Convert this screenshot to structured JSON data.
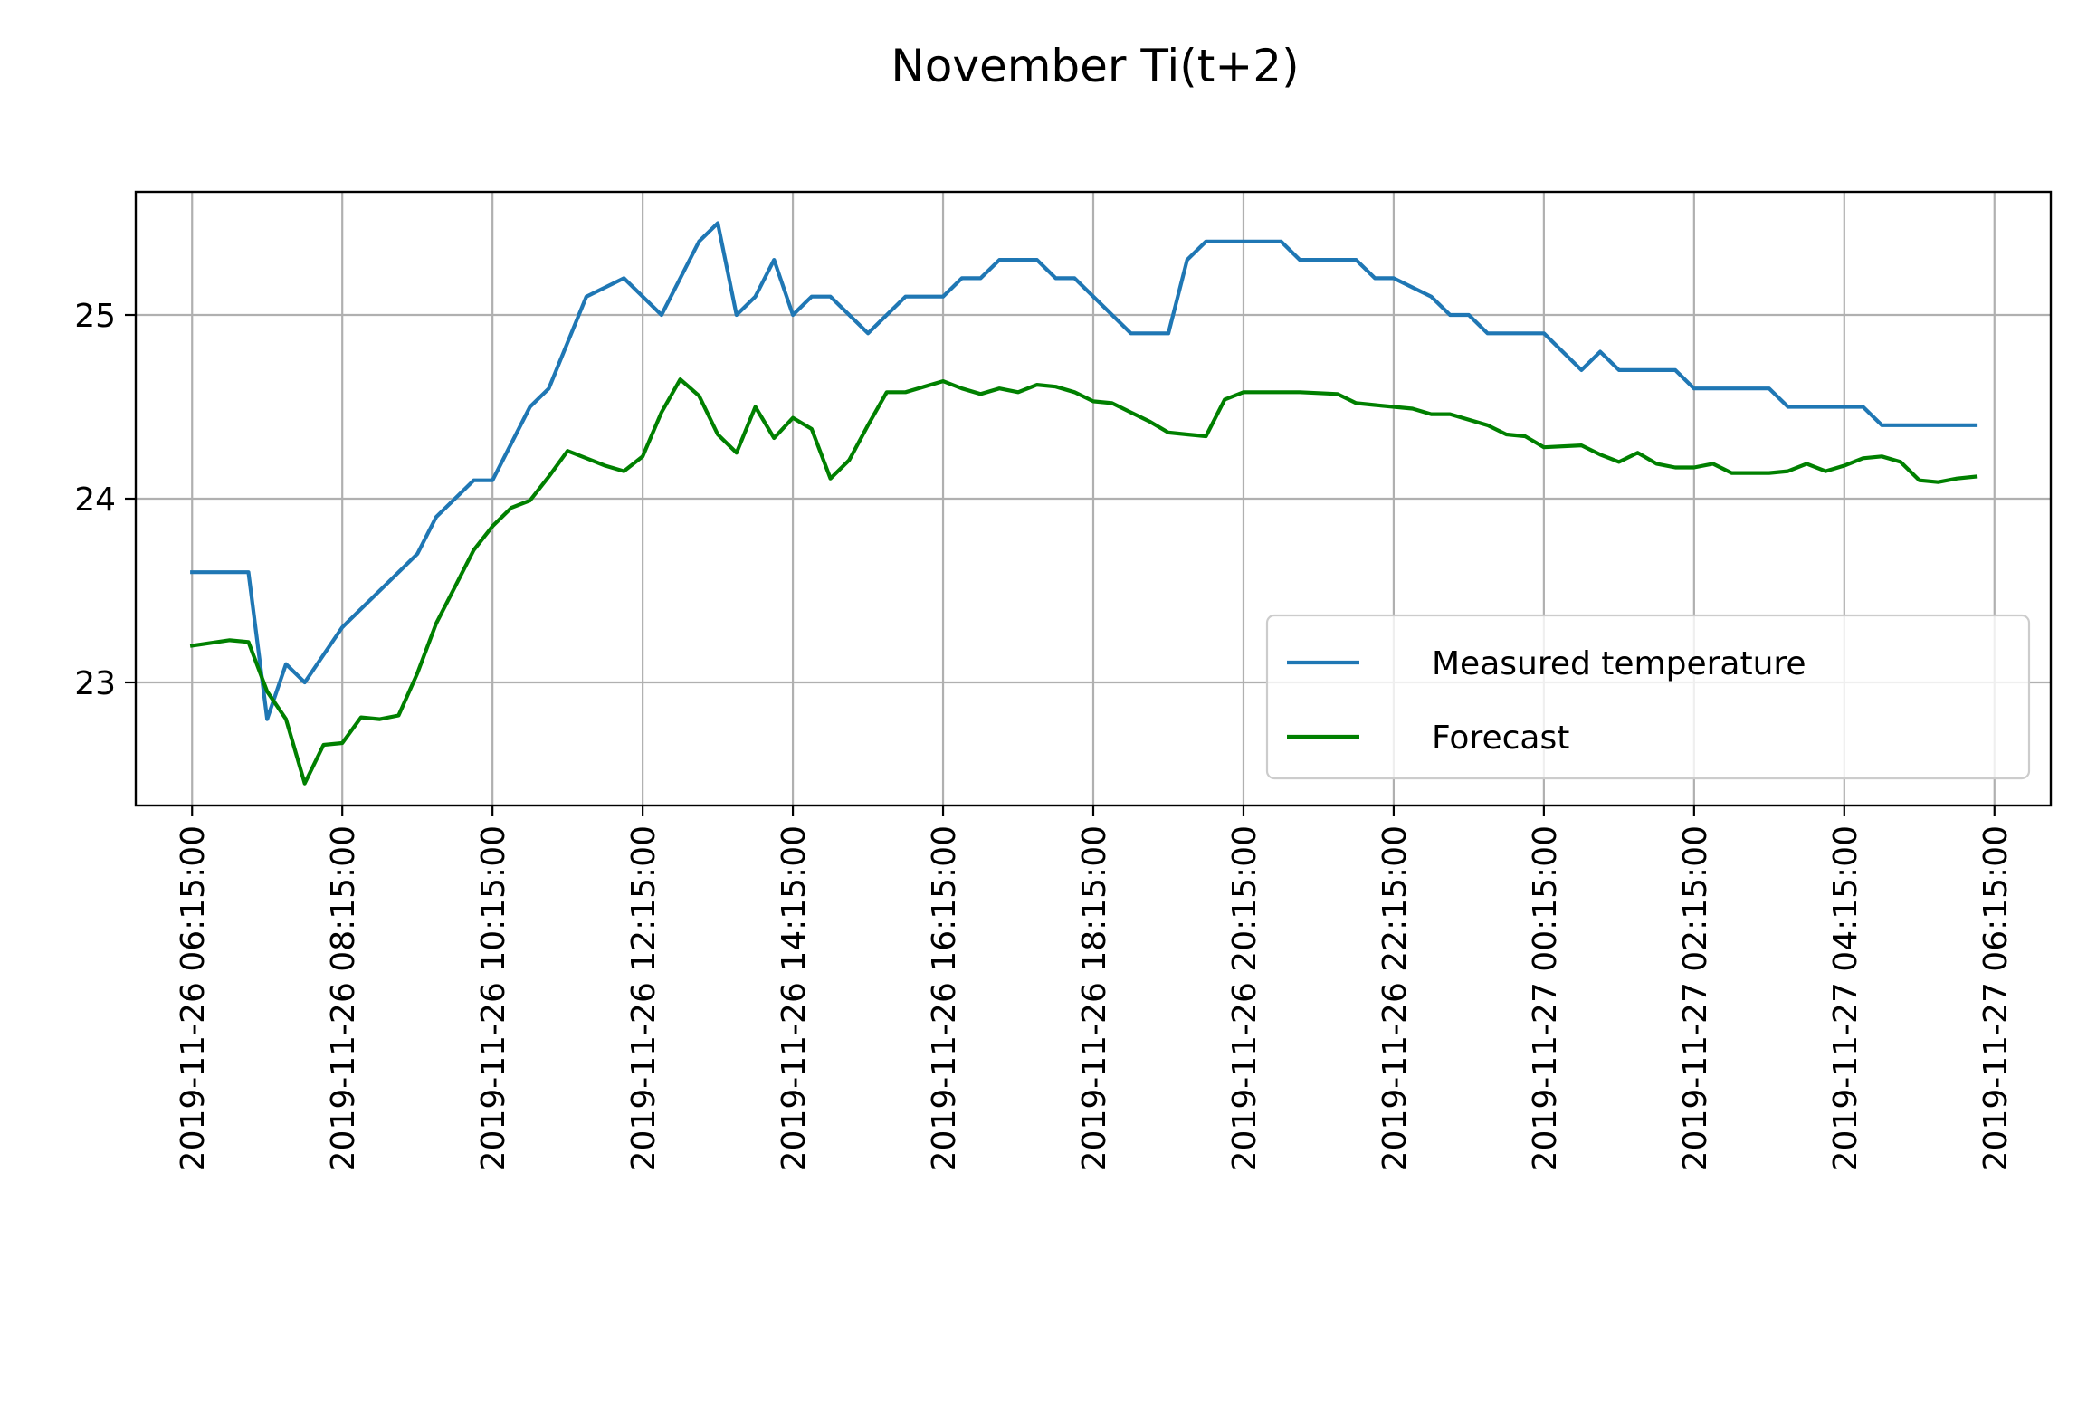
{
  "chart_data": {
    "type": "line",
    "title": "November Ti(t+2)",
    "xlabel": "",
    "ylabel": "",
    "x_start": "2019-11-26 06:15:00",
    "x_ticks": [
      "2019-11-26 06:15:00",
      "2019-11-26 08:15:00",
      "2019-11-26 10:15:00",
      "2019-11-26 12:15:00",
      "2019-11-26 14:15:00",
      "2019-11-26 16:15:00",
      "2019-11-26 18:15:00",
      "2019-11-26 20:15:00",
      "2019-11-26 22:15:00",
      "2019-11-27 00:15:00",
      "2019-11-27 02:15:00",
      "2019-11-27 04:15:00",
      "2019-11-27 06:15:00"
    ],
    "y_ticks": [
      23,
      24,
      25
    ],
    "xlim": [
      "2019-11-26 05:30:00",
      "2019-11-27 07:00:00"
    ],
    "ylim": [
      22.33,
      25.67
    ],
    "grid": true,
    "legend_position": "lower-right",
    "series": [
      {
        "name": "Measured temperature",
        "color": "#1f77b4",
        "points": [
          [
            "2019-11-26 06:15:00",
            23.6
          ],
          [
            "2019-11-26 06:30:00",
            23.6
          ],
          [
            "2019-11-26 06:45:00",
            23.6
          ],
          [
            "2019-11-26 07:00:00",
            23.6
          ],
          [
            "2019-11-26 07:15:00",
            22.8
          ],
          [
            "2019-11-26 07:30:00",
            23.1
          ],
          [
            "2019-11-26 07:45:00",
            23.0
          ],
          [
            "2019-11-26 08:15:00",
            23.3
          ],
          [
            "2019-11-26 09:15:00",
            23.7
          ],
          [
            "2019-11-26 09:30:00",
            23.9
          ],
          [
            "2019-11-26 10:00:00",
            24.1
          ],
          [
            "2019-11-26 10:15:00",
            24.1
          ],
          [
            "2019-11-26 10:45:00",
            24.5
          ],
          [
            "2019-11-26 11:00:00",
            24.6
          ],
          [
            "2019-11-26 11:30:00",
            25.1
          ],
          [
            "2019-11-26 12:00:00",
            25.2
          ],
          [
            "2019-11-26 12:30:00",
            25.0
          ],
          [
            "2019-11-26 13:00:00",
            25.4
          ],
          [
            "2019-11-26 13:15:00",
            25.5
          ],
          [
            "2019-11-26 13:30:00",
            25.0
          ],
          [
            "2019-11-26 13:45:00",
            25.1
          ],
          [
            "2019-11-26 14:00:00",
            25.3
          ],
          [
            "2019-11-26 14:15:00",
            25.0
          ],
          [
            "2019-11-26 14:30:00",
            25.1
          ],
          [
            "2019-11-26 14:45:00",
            25.1
          ],
          [
            "2019-11-26 15:15:00",
            24.9
          ],
          [
            "2019-11-26 15:45:00",
            25.1
          ],
          [
            "2019-11-26 16:15:00",
            25.1
          ],
          [
            "2019-11-26 16:30:00",
            25.2
          ],
          [
            "2019-11-26 16:45:00",
            25.2
          ],
          [
            "2019-11-26 17:00:00",
            25.3
          ],
          [
            "2019-11-26 17:30:00",
            25.3
          ],
          [
            "2019-11-26 17:45:00",
            25.2
          ],
          [
            "2019-11-26 18:00:00",
            25.2
          ],
          [
            "2019-11-26 18:45:00",
            24.9
          ],
          [
            "2019-11-26 19:15:00",
            24.9
          ],
          [
            "2019-11-26 19:30:00",
            25.3
          ],
          [
            "2019-11-26 19:45:00",
            25.4
          ],
          [
            "2019-11-26 20:30:00",
            25.4
          ],
          [
            "2019-11-26 20:45:00",
            25.4
          ],
          [
            "2019-11-26 21:00:00",
            25.3
          ],
          [
            "2019-11-26 21:45:00",
            25.3
          ],
          [
            "2019-11-26 22:00:00",
            25.2
          ],
          [
            "2019-11-26 22:15:00",
            25.2
          ],
          [
            "2019-11-26 22:45:00",
            25.1
          ],
          [
            "2019-11-26 23:00:00",
            25.0
          ],
          [
            "2019-11-26 23:15:00",
            25.0
          ],
          [
            "2019-11-26 23:30:00",
            24.9
          ],
          [
            "2019-11-27 00:15:00",
            24.9
          ],
          [
            "2019-11-27 00:45:00",
            24.7
          ],
          [
            "2019-11-27 01:00:00",
            24.8
          ],
          [
            "2019-11-27 01:15:00",
            24.7
          ],
          [
            "2019-11-27 02:00:00",
            24.7
          ],
          [
            "2019-11-27 02:15:00",
            24.6
          ],
          [
            "2019-11-27 03:15:00",
            24.6
          ],
          [
            "2019-11-27 03:30:00",
            24.5
          ],
          [
            "2019-11-27 04:30:00",
            24.5
          ],
          [
            "2019-11-27 04:45:00",
            24.4
          ],
          [
            "2019-11-27 06:00:00",
            24.4
          ]
        ]
      },
      {
        "name": "Forecast",
        "color": "#008000",
        "points": [
          [
            "2019-11-26 06:15:00",
            23.2
          ],
          [
            "2019-11-26 06:45:00",
            23.23
          ],
          [
            "2019-11-26 07:00:00",
            23.22
          ],
          [
            "2019-11-26 07:15:00",
            22.95
          ],
          [
            "2019-11-26 07:30:00",
            22.8
          ],
          [
            "2019-11-26 07:45:00",
            22.45
          ],
          [
            "2019-11-26 08:00:00",
            22.66
          ],
          [
            "2019-11-26 08:15:00",
            22.67
          ],
          [
            "2019-11-26 08:30:00",
            22.81
          ],
          [
            "2019-11-26 08:45:00",
            22.8
          ],
          [
            "2019-11-26 09:00:00",
            22.82
          ],
          [
            "2019-11-26 09:15:00",
            23.05
          ],
          [
            "2019-11-26 09:30:00",
            23.32
          ],
          [
            "2019-11-26 09:45:00",
            23.52
          ],
          [
            "2019-11-26 10:00:00",
            23.72
          ],
          [
            "2019-11-26 10:15:00",
            23.85
          ],
          [
            "2019-11-26 10:30:00",
            23.95
          ],
          [
            "2019-11-26 10:45:00",
            23.99
          ],
          [
            "2019-11-26 11:00:00",
            24.12
          ],
          [
            "2019-11-26 11:15:00",
            24.26
          ],
          [
            "2019-11-26 11:30:00",
            24.22
          ],
          [
            "2019-11-26 11:45:00",
            24.18
          ],
          [
            "2019-11-26 12:00:00",
            24.15
          ],
          [
            "2019-11-26 12:15:00",
            24.23
          ],
          [
            "2019-11-26 12:30:00",
            24.47
          ],
          [
            "2019-11-26 12:45:00",
            24.65
          ],
          [
            "2019-11-26 13:00:00",
            24.56
          ],
          [
            "2019-11-26 13:15:00",
            24.35
          ],
          [
            "2019-11-26 13:30:00",
            24.25
          ],
          [
            "2019-11-26 13:45:00",
            24.5
          ],
          [
            "2019-11-26 14:00:00",
            24.33
          ],
          [
            "2019-11-26 14:15:00",
            24.44
          ],
          [
            "2019-11-26 14:30:00",
            24.38
          ],
          [
            "2019-11-26 14:45:00",
            24.11
          ],
          [
            "2019-11-26 15:00:00",
            24.21
          ],
          [
            "2019-11-26 15:15:00",
            24.4
          ],
          [
            "2019-11-26 15:30:00",
            24.58
          ],
          [
            "2019-11-26 15:45:00",
            24.58
          ],
          [
            "2019-11-26 16:00:00",
            24.61
          ],
          [
            "2019-11-26 16:15:00",
            24.64
          ],
          [
            "2019-11-26 16:30:00",
            24.6
          ],
          [
            "2019-11-26 16:45:00",
            24.57
          ],
          [
            "2019-11-26 17:00:00",
            24.6
          ],
          [
            "2019-11-26 17:15:00",
            24.58
          ],
          [
            "2019-11-26 17:30:00",
            24.62
          ],
          [
            "2019-11-26 17:45:00",
            24.61
          ],
          [
            "2019-11-26 18:00:00",
            24.58
          ],
          [
            "2019-11-26 18:15:00",
            24.53
          ],
          [
            "2019-11-26 18:30:00",
            24.52
          ],
          [
            "2019-11-26 18:45:00",
            24.47
          ],
          [
            "2019-11-26 19:00:00",
            24.42
          ],
          [
            "2019-11-26 19:15:00",
            24.36
          ],
          [
            "2019-11-26 19:30:00",
            24.35
          ],
          [
            "2019-11-26 19:45:00",
            24.34
          ],
          [
            "2019-11-26 20:00:00",
            24.54
          ],
          [
            "2019-11-26 20:15:00",
            24.58
          ],
          [
            "2019-11-26 20:45:00",
            24.58
          ],
          [
            "2019-11-26 21:00:00",
            24.58
          ],
          [
            "2019-11-26 21:30:00",
            24.57
          ],
          [
            "2019-11-26 21:45:00",
            24.52
          ],
          [
            "2019-11-26 22:00:00",
            24.51
          ],
          [
            "2019-11-26 22:30:00",
            24.49
          ],
          [
            "2019-11-26 22:45:00",
            24.46
          ],
          [
            "2019-11-26 23:00:00",
            24.46
          ],
          [
            "2019-11-26 23:30:00",
            24.4
          ],
          [
            "2019-11-26 23:45:00",
            24.35
          ],
          [
            "2019-11-27 00:00:00",
            24.34
          ],
          [
            "2019-11-27 00:15:00",
            24.28
          ],
          [
            "2019-11-27 00:45:00",
            24.29
          ],
          [
            "2019-11-27 01:00:00",
            24.24
          ],
          [
            "2019-11-27 01:15:00",
            24.2
          ],
          [
            "2019-11-27 01:30:00",
            24.25
          ],
          [
            "2019-11-27 01:45:00",
            24.19
          ],
          [
            "2019-11-27 02:00:00",
            24.17
          ],
          [
            "2019-11-27 02:15:00",
            24.17
          ],
          [
            "2019-11-27 02:30:00",
            24.19
          ],
          [
            "2019-11-27 02:45:00",
            24.14
          ],
          [
            "2019-11-27 03:15:00",
            24.14
          ],
          [
            "2019-11-27 03:30:00",
            24.15
          ],
          [
            "2019-11-27 03:45:00",
            24.19
          ],
          [
            "2019-11-27 04:00:00",
            24.15
          ],
          [
            "2019-11-27 04:15:00",
            24.18
          ],
          [
            "2019-11-27 04:30:00",
            24.22
          ],
          [
            "2019-11-27 04:45:00",
            24.23
          ],
          [
            "2019-11-27 05:00:00",
            24.2
          ],
          [
            "2019-11-27 05:15:00",
            24.1
          ],
          [
            "2019-11-27 05:30:00",
            24.09
          ],
          [
            "2019-11-27 05:45:00",
            24.11
          ],
          [
            "2019-11-27 06:00:00",
            24.12
          ]
        ]
      }
    ]
  }
}
